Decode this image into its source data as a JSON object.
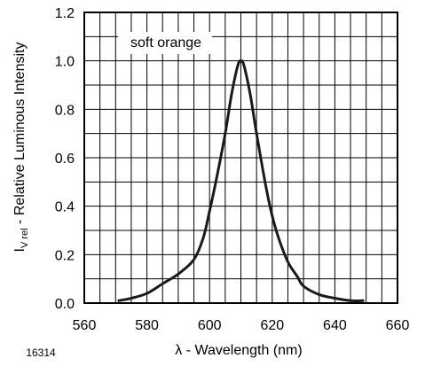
{
  "figure_id": "16314",
  "chart_data": {
    "type": "line",
    "xlabel": "λ - Wavelength (nm)",
    "ylabel": {
      "main": "I",
      "subscript": "V rel",
      "rest": " - Relative Luminous Intensity"
    },
    "xlim": [
      560,
      660
    ],
    "ylim": [
      0.0,
      1.2
    ],
    "xticks": [
      560,
      580,
      600,
      620,
      640,
      660
    ],
    "xtick_labels": [
      "560",
      "580",
      "600",
      "620",
      "640",
      "660"
    ],
    "yticks": [
      0.0,
      0.2,
      0.4,
      0.6,
      0.8,
      1.0,
      1.2
    ],
    "ytick_labels": [
      "0.0",
      "0.2",
      "0.4",
      "0.6",
      "0.8",
      "1.0",
      "1.2"
    ],
    "grid": true,
    "grid_x_step": 5,
    "grid_y_step": 0.1,
    "legend_placement": "top-left",
    "colors": {
      "line": "#1a1a1a",
      "grid": "#000000",
      "background": "#ffffff"
    },
    "series": [
      {
        "name": "soft orange",
        "x": [
          571,
          575,
          580,
          585,
          590,
          595,
          598,
          600,
          602,
          605,
          607,
          609,
          610,
          611,
          613,
          615,
          618,
          620,
          622,
          625,
          628,
          630,
          635,
          640,
          645,
          649
        ],
        "y": [
          0.01,
          0.02,
          0.04,
          0.08,
          0.12,
          0.18,
          0.27,
          0.38,
          0.5,
          0.7,
          0.86,
          0.98,
          1.0,
          0.98,
          0.86,
          0.7,
          0.48,
          0.36,
          0.27,
          0.17,
          0.11,
          0.07,
          0.035,
          0.02,
          0.01,
          0.01
        ]
      }
    ]
  }
}
